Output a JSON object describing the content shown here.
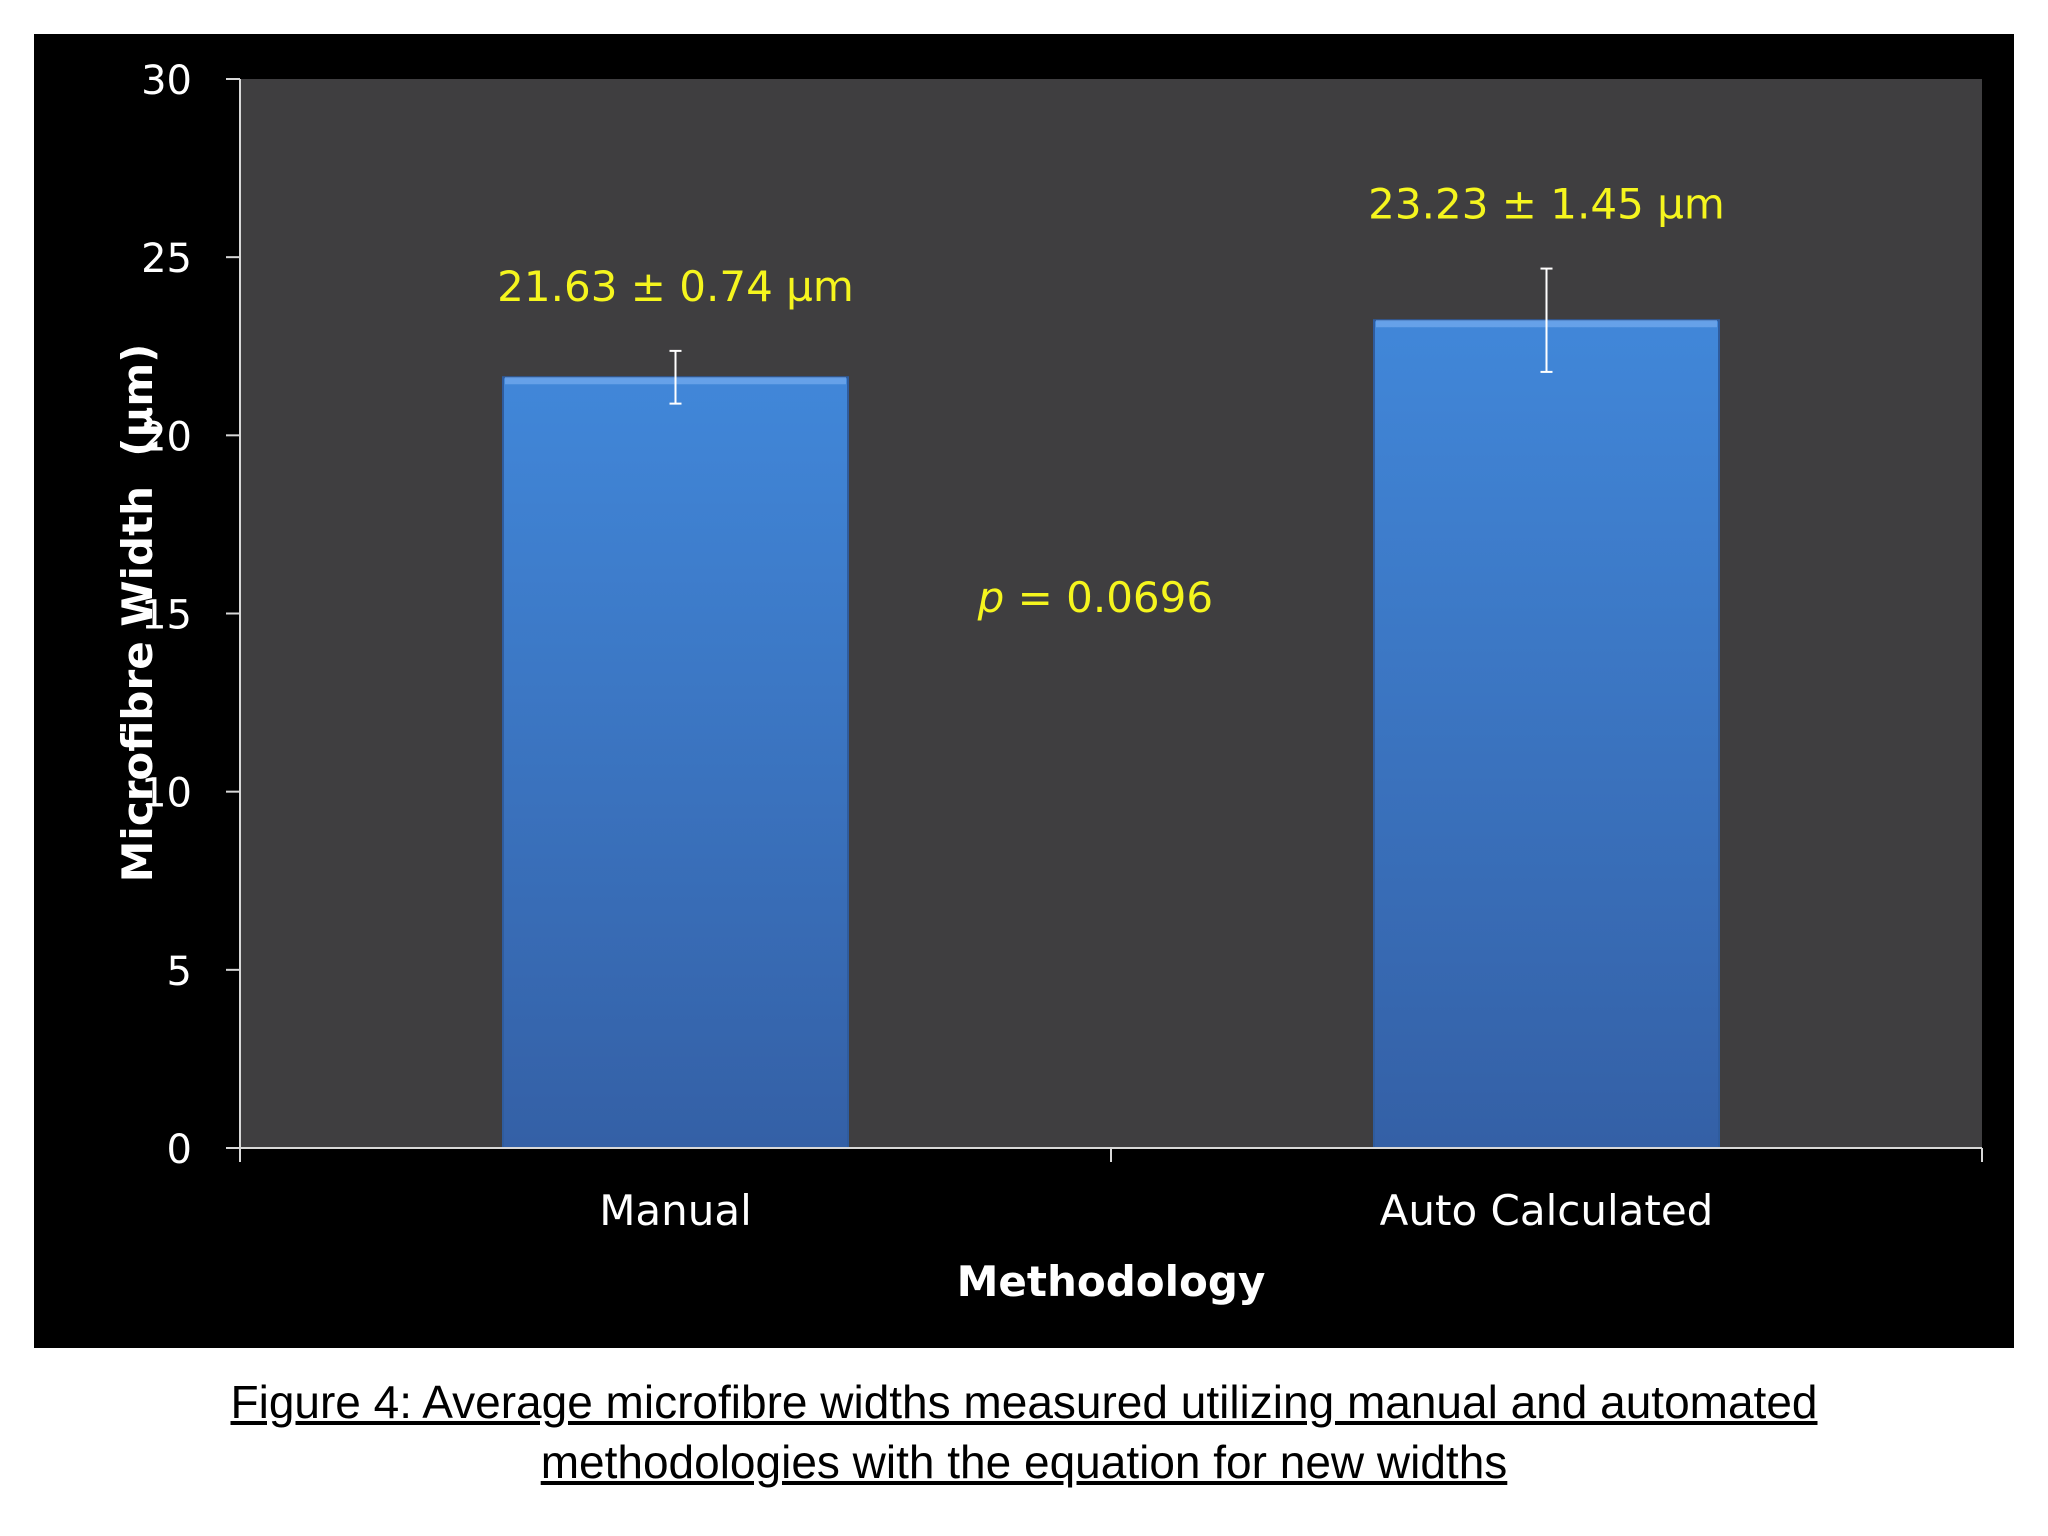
{
  "chart_data": {
    "type": "bar",
    "categories": [
      "Manual",
      "Auto Calculated"
    ],
    "values": [
      21.63,
      23.23
    ],
    "errors": [
      0.74,
      1.45
    ],
    "value_labels": [
      "21.63 ± 0.74 µm",
      "23.23 ± 1.45 µm"
    ],
    "annotation": {
      "italic": "p",
      "rest": " = 0.0696"
    },
    "xlabel": "Methodology",
    "ylabel": "Microfibre Width  (µm)",
    "ylim": [
      0,
      30
    ],
    "yticks": [
      0,
      5,
      10,
      15,
      20,
      25,
      30
    ],
    "grid": false,
    "legend": "none"
  },
  "caption": {
    "line1": "Figure 4: Average microfibre widths measured utilizing manual and automated",
    "line2": "methodologies with the equation for new widths"
  },
  "colors": {
    "panel_background": "#000000",
    "plot_area": "#3f3e40",
    "bar_top": "#4187d9",
    "bar_bottom": "#3460a6",
    "axis_text": "#ffffff",
    "annotation_text": "#f5f51e",
    "error_bar": "#ffffff"
  }
}
